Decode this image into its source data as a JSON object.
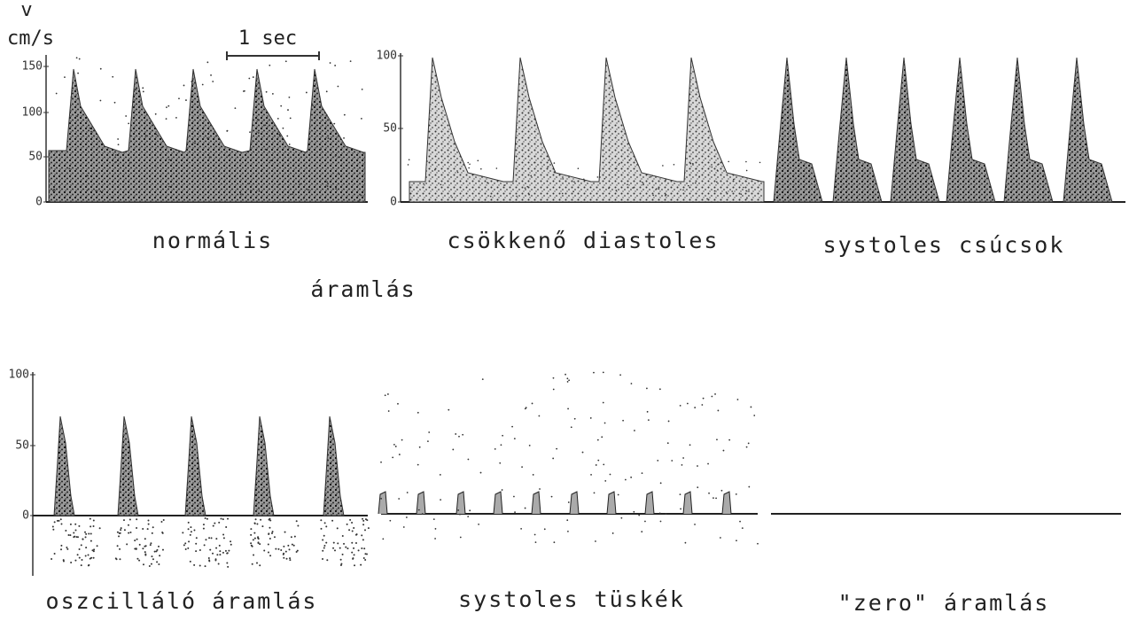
{
  "axis": {
    "symbol": "v",
    "unit": "cm/s",
    "scale_bar": "1 sec"
  },
  "panels": [
    {
      "label": "normális",
      "yticks": [
        "150",
        "100",
        "50",
        "0"
      ]
    },
    {
      "label": "csökkenő diastoles",
      "yticks": [
        "100",
        "50",
        "0"
      ]
    },
    {
      "label": "systoles csúcsok"
    },
    {
      "label": "oszcilláló áramlás",
      "yticks": [
        "100",
        "50",
        "0"
      ]
    },
    {
      "label": "systoles tüskék"
    },
    {
      "label": "\"zero\" áramlás"
    }
  ],
  "group_label": "áramlás"
}
